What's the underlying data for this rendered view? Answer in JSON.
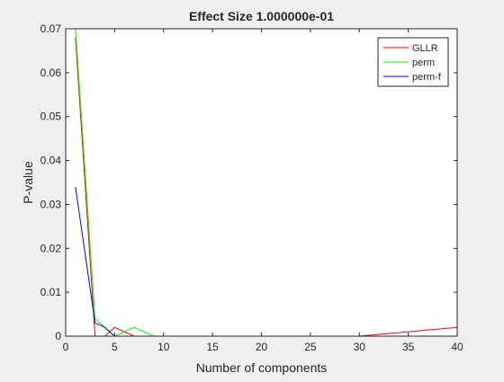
{
  "chart_data": {
    "type": "line",
    "title": "Effect Size 1.000000e-01",
    "xlabel": "Number of components",
    "ylabel": "P-value",
    "xlim": [
      0,
      40
    ],
    "ylim": [
      0,
      0.07
    ],
    "xticks": [
      0,
      5,
      10,
      15,
      20,
      25,
      30,
      35,
      40
    ],
    "xtick_labels": [
      "0",
      "5",
      "10",
      "15",
      "20",
      "25",
      "30",
      "35",
      "40"
    ],
    "yticks": [
      0,
      0.01,
      0.02,
      0.03,
      0.04,
      0.05,
      0.06,
      0.07
    ],
    "ytick_labels": [
      "0",
      "0.01",
      "0.02",
      "0.03",
      "0.04",
      "0.05",
      "0.06",
      "0.07"
    ],
    "grid": false,
    "legend_position": "top-right",
    "series": [
      {
        "name": "GLLR",
        "color": "#ff0000",
        "x": [
          1,
          3,
          4,
          5,
          6,
          7,
          8,
          9,
          30,
          40
        ],
        "y": [
          0.068,
          0.0,
          0.0,
          0.002,
          0.001,
          0.0,
          0.0,
          0.0,
          0.0,
          0.002
        ]
      },
      {
        "name": "perm",
        "color": "#00ff00",
        "x": [
          1,
          3,
          4,
          5,
          6,
          7,
          8,
          9,
          40
        ],
        "y": [
          0.07,
          0.004,
          0.002,
          0.0,
          0.001,
          0.002,
          0.001,
          0.0,
          0.0
        ]
      },
      {
        "name": "perm-f",
        "color": "#0000ff",
        "x": [
          1,
          3,
          4,
          5,
          40
        ],
        "y": [
          0.034,
          0.003,
          0.002,
          0.0,
          0.0
        ]
      }
    ]
  }
}
